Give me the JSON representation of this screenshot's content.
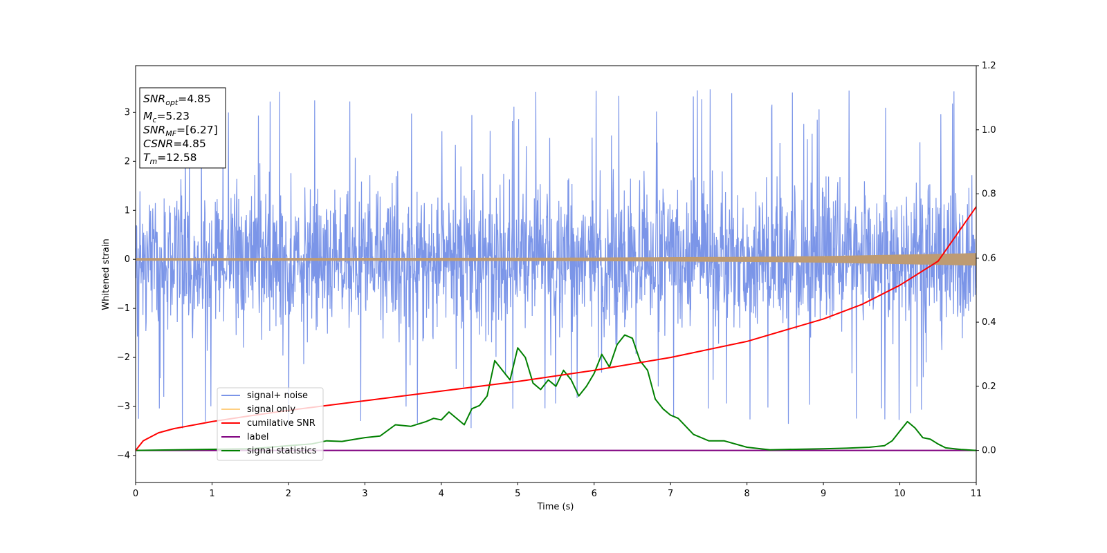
{
  "chart_data": {
    "type": "line",
    "title": "",
    "xlabel": "Time (s)",
    "ylabel": "Whitened strain",
    "xlim": [
      0,
      11
    ],
    "ylim": [
      -4.55,
      3.95
    ],
    "y2lim": [
      -0.1,
      1.2
    ],
    "xticks": [
      "0",
      "1",
      "2",
      "3",
      "4",
      "5",
      "6",
      "7",
      "8",
      "9",
      "10",
      "11"
    ],
    "yticks": [
      "−4",
      "−3",
      "−2",
      "−1",
      "0",
      "1",
      "2",
      "3"
    ],
    "y2ticks": [
      "0.0",
      "0.2",
      "0.4",
      "0.6",
      "0.8",
      "1.0",
      "1.2"
    ],
    "grid": false,
    "legend_position": "lower-left",
    "legend": [
      "signal+ noise",
      "signal only",
      "cumilative SNR",
      "label",
      "signal statistics"
    ],
    "colors": {
      "signal_noise": "#7b95e8",
      "signal_only": "#ffcf80",
      "signal_only_overlap": "#bd9b73",
      "cumulative_snr": "#ff0000",
      "label": "#800080",
      "signal_statistics": "#008000"
    },
    "annotation": {
      "snr_opt": {
        "sym": "SNR",
        "sub": "opt",
        "value": "=4.85"
      },
      "mc": {
        "sym": "M",
        "sub": "c",
        "value": "=5.23"
      },
      "snr_mf": {
        "sym": "SNR",
        "sub": "MF",
        "value": "=[6.27]"
      },
      "csnr": {
        "sym": "CSNR",
        "sub": "",
        "value": "=4.85"
      },
      "tm": {
        "sym": "T",
        "sub": "m",
        "value": "=12.58"
      }
    },
    "series": [
      {
        "name": "signal+ noise",
        "axis": "left",
        "note": "noise band with positive peaks mostly within 1.5 to 3.6 and negative peaks within -1.5 to -4.2",
        "envelope_upper_typical": 2.4,
        "envelope_lower_typical": -2.3,
        "peak_max": 3.6,
        "peak_min": -4.18
      },
      {
        "name": "signal only",
        "axis": "left",
        "amplitude_x": [
          0,
          4,
          6,
          8,
          9,
          10,
          11
        ],
        "amplitude": [
          0.02,
          0.025,
          0.03,
          0.045,
          0.06,
          0.09,
          0.12
        ]
      },
      {
        "name": "cumilative SNR",
        "axis": "right",
        "x": [
          0,
          0.1,
          0.3,
          0.5,
          1,
          1.5,
          2,
          3,
          4,
          5,
          6,
          7,
          8,
          9,
          9.5,
          10,
          10.5,
          11
        ],
        "y": [
          0.0,
          0.03,
          0.055,
          0.068,
          0.09,
          0.108,
          0.125,
          0.155,
          0.185,
          0.215,
          0.25,
          0.29,
          0.34,
          0.41,
          0.455,
          0.515,
          0.59,
          0.76
        ]
      },
      {
        "name": "label",
        "axis": "right",
        "x": [
          0,
          11
        ],
        "y": [
          0.0,
          0.0
        ]
      },
      {
        "name": "signal statistics",
        "axis": "right",
        "x": [
          0,
          1.5,
          2,
          2.3,
          2.5,
          2.7,
          3,
          3.2,
          3.4,
          3.6,
          3.8,
          3.9,
          4.0,
          4.1,
          4.3,
          4.4,
          4.5,
          4.6,
          4.7,
          4.8,
          4.9,
          5.0,
          5.1,
          5.2,
          5.3,
          5.4,
          5.5,
          5.6,
          5.7,
          5.8,
          5.9,
          6.0,
          6.1,
          6.2,
          6.3,
          6.4,
          6.5,
          6.6,
          6.7,
          6.8,
          6.9,
          7.0,
          7.1,
          7.3,
          7.5,
          7.7,
          8.0,
          8.3,
          8.5,
          9.0,
          9.3,
          9.6,
          9.8,
          9.9,
          10.0,
          10.1,
          10.2,
          10.3,
          10.4,
          10.5,
          10.6,
          10.8,
          11
        ],
        "y": [
          0.0,
          0.005,
          0.015,
          0.02,
          0.03,
          0.028,
          0.04,
          0.045,
          0.08,
          0.075,
          0.09,
          0.1,
          0.095,
          0.12,
          0.08,
          0.13,
          0.14,
          0.17,
          0.28,
          0.25,
          0.22,
          0.32,
          0.29,
          0.21,
          0.19,
          0.22,
          0.2,
          0.25,
          0.22,
          0.17,
          0.2,
          0.24,
          0.3,
          0.26,
          0.33,
          0.36,
          0.35,
          0.28,
          0.25,
          0.16,
          0.13,
          0.11,
          0.1,
          0.05,
          0.03,
          0.03,
          0.01,
          0.002,
          0.003,
          0.005,
          0.007,
          0.01,
          0.015,
          0.03,
          0.06,
          0.09,
          0.07,
          0.04,
          0.035,
          0.02,
          0.008,
          0.003,
          0.0
        ]
      }
    ]
  }
}
